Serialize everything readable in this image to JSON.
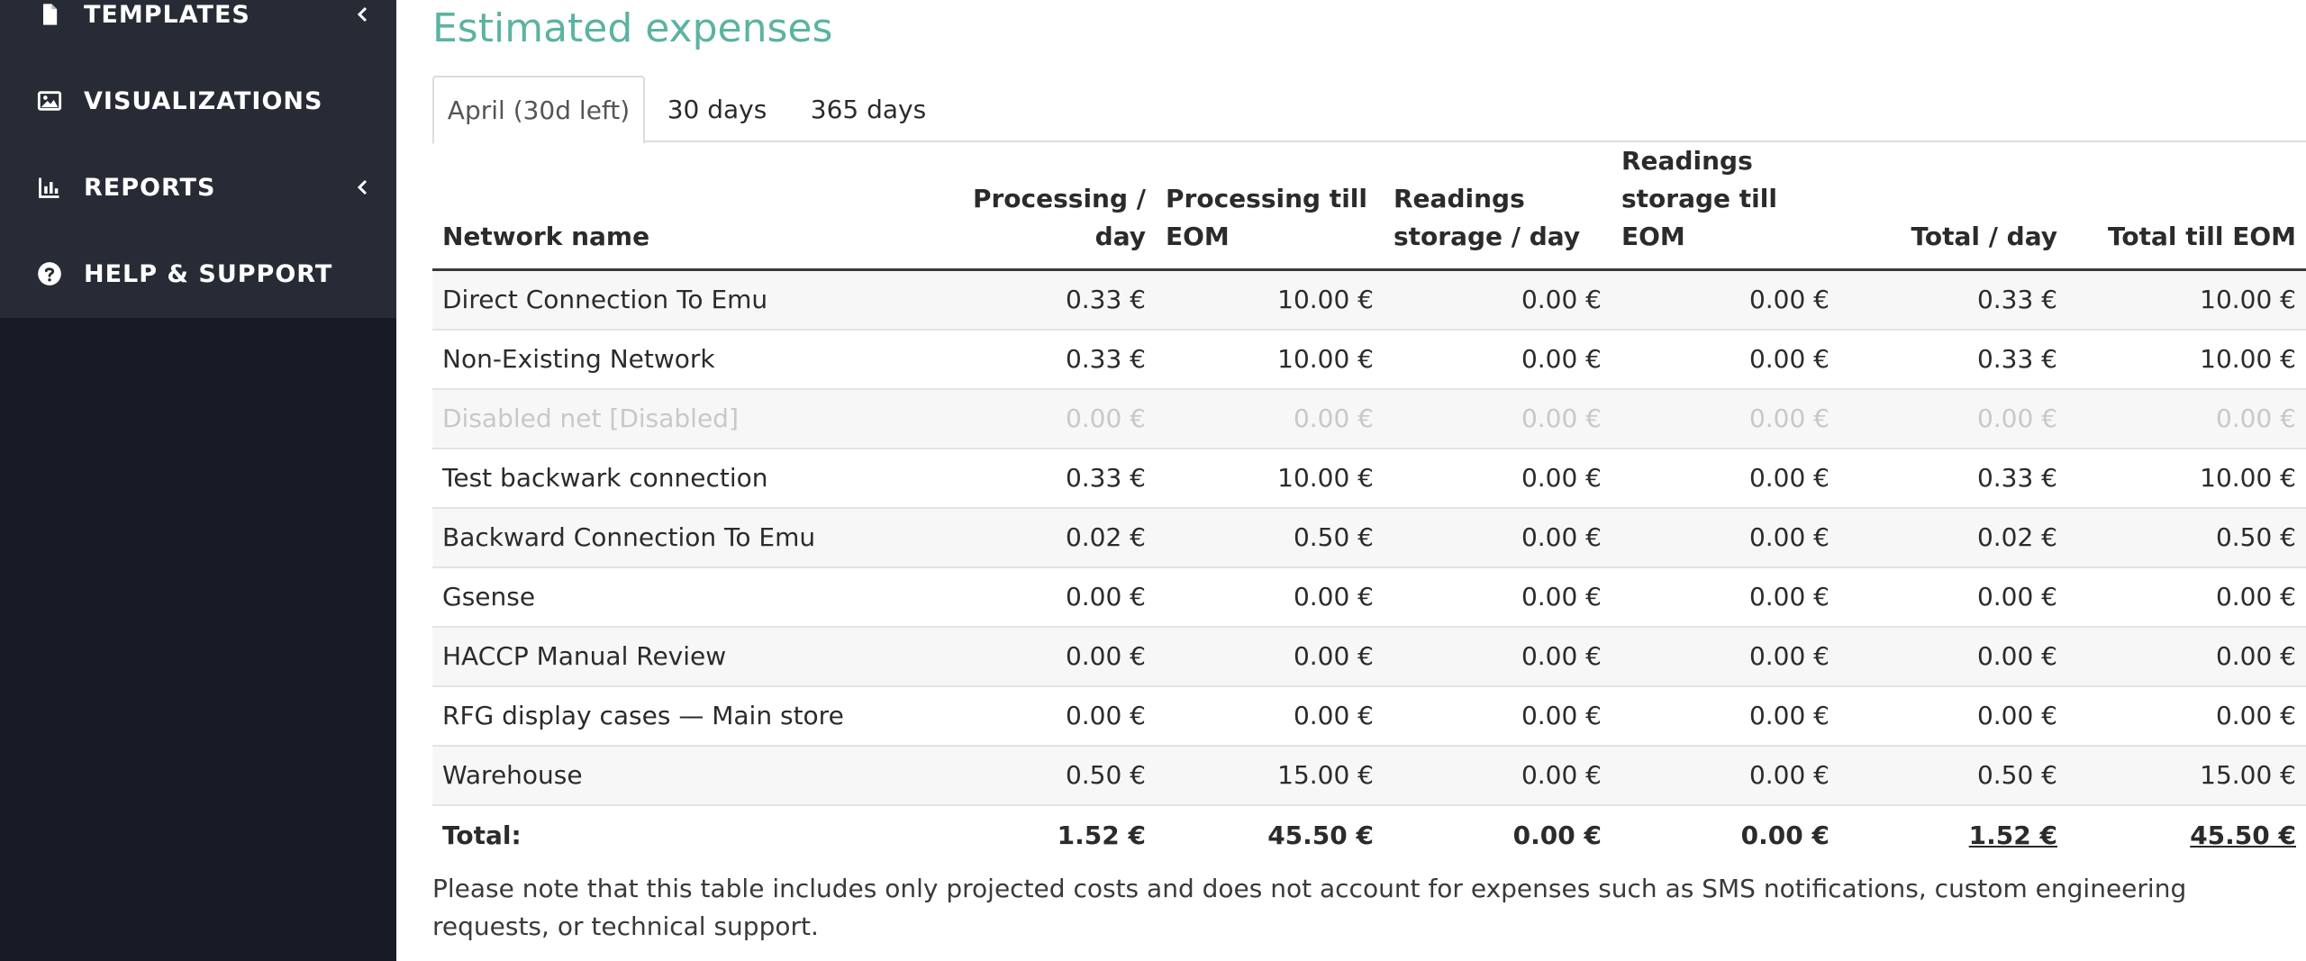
{
  "sidebar": {
    "items": [
      {
        "label": "TEMPLATES",
        "icon": "file-icon",
        "has_chevron": true
      },
      {
        "label": "VISUALIZATIONS",
        "icon": "image-icon",
        "has_chevron": false
      },
      {
        "label": "REPORTS",
        "icon": "bar-chart-icon",
        "has_chevron": true
      },
      {
        "label": "HELP & SUPPORT",
        "icon": "question-circle-icon",
        "has_chevron": false
      }
    ]
  },
  "main": {
    "title": "Estimated expenses",
    "tabs": [
      {
        "label": "April (30d left)",
        "active": true
      },
      {
        "label": "30 days",
        "active": false
      },
      {
        "label": "365 days",
        "active": false
      }
    ],
    "table": {
      "headers": [
        "Network name",
        "Processing / day",
        "Processing till EOM",
        "Readings storage / day",
        "Readings storage till EOM",
        "Total / day",
        "Total till EOM"
      ],
      "rows": [
        {
          "name": "Direct Connection To Emu",
          "values": [
            "0.33 €",
            "10.00 €",
            "0.00 €",
            "0.00 €",
            "0.33 €",
            "10.00 €"
          ],
          "disabled": false
        },
        {
          "name": "Non-Existing Network",
          "values": [
            "0.33 €",
            "10.00 €",
            "0.00 €",
            "0.00 €",
            "0.33 €",
            "10.00 €"
          ],
          "disabled": false
        },
        {
          "name": "Disabled net [Disabled]",
          "values": [
            "0.00 €",
            "0.00 €",
            "0.00 €",
            "0.00 €",
            "0.00 €",
            "0.00 €"
          ],
          "disabled": true
        },
        {
          "name": "Test backwark connection",
          "values": [
            "0.33 €",
            "10.00 €",
            "0.00 €",
            "0.00 €",
            "0.33 €",
            "10.00 €"
          ],
          "disabled": false
        },
        {
          "name": "Backward Connection To Emu",
          "values": [
            "0.02 €",
            "0.50 €",
            "0.00 €",
            "0.00 €",
            "0.02 €",
            "0.50 €"
          ],
          "disabled": false
        },
        {
          "name": "Gsense",
          "values": [
            "0.00 €",
            "0.00 €",
            "0.00 €",
            "0.00 €",
            "0.00 €",
            "0.00 €"
          ],
          "disabled": false
        },
        {
          "name": "HACCP Manual Review",
          "values": [
            "0.00 €",
            "0.00 €",
            "0.00 €",
            "0.00 €",
            "0.00 €",
            "0.00 €"
          ],
          "disabled": false
        },
        {
          "name": "RFG display cases — Main store",
          "values": [
            "0.00 €",
            "0.00 €",
            "0.00 €",
            "0.00 €",
            "0.00 €",
            "0.00 €"
          ],
          "disabled": false
        },
        {
          "name": "Warehouse",
          "values": [
            "0.50 €",
            "15.00 €",
            "0.00 €",
            "0.00 €",
            "0.50 €",
            "15.00 €"
          ],
          "disabled": false
        }
      ],
      "total": {
        "label": "Total:",
        "values": [
          "1.52 €",
          "45.50 €",
          "0.00 €",
          "0.00 €",
          "1.52 €",
          "45.50 €"
        ]
      }
    },
    "note": "Please note that this table includes only projected costs and does not account for expenses such as SMS notifications, custom engineering requests, or technical support."
  },
  "colors": {
    "title": "#5bb3a1",
    "sidebar_bg": "#161b26",
    "sidebar_panel": "#272b35",
    "disabled_text": "#c8c8c8"
  }
}
